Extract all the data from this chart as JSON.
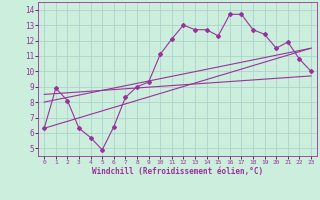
{
  "xlabel": "Windchill (Refroidissement éolien,°C)",
  "bg_color": "#cceedd",
  "line_color": "#993399",
  "grid_color": "#aacccc",
  "xlim": [
    -0.5,
    23.5
  ],
  "ylim": [
    4.5,
    14.5
  ],
  "xticks": [
    0,
    1,
    2,
    3,
    4,
    5,
    6,
    7,
    8,
    9,
    10,
    11,
    12,
    13,
    14,
    15,
    16,
    17,
    18,
    19,
    20,
    21,
    22,
    23
  ],
  "yticks": [
    5,
    6,
    7,
    8,
    9,
    10,
    11,
    12,
    13,
    14
  ],
  "zigzag_x": [
    0,
    1,
    2,
    3,
    4,
    5,
    6,
    7,
    8,
    9,
    10,
    11,
    12,
    13,
    14,
    15,
    16,
    17,
    18,
    19,
    20,
    21,
    22,
    23
  ],
  "zigzag_y": [
    6.3,
    8.9,
    8.1,
    6.3,
    5.7,
    4.9,
    6.4,
    8.3,
    9.0,
    9.3,
    11.1,
    12.1,
    13.0,
    12.7,
    12.7,
    12.3,
    13.7,
    13.7,
    12.7,
    12.4,
    11.5,
    11.9,
    10.8,
    10.0
  ],
  "line1_x": [
    0,
    23
  ],
  "line1_y": [
    6.3,
    11.5
  ],
  "line2_x": [
    0,
    23
  ],
  "line2_y": [
    8.0,
    11.5
  ],
  "line3_x": [
    0,
    23
  ],
  "line3_y": [
    8.5,
    9.7
  ]
}
